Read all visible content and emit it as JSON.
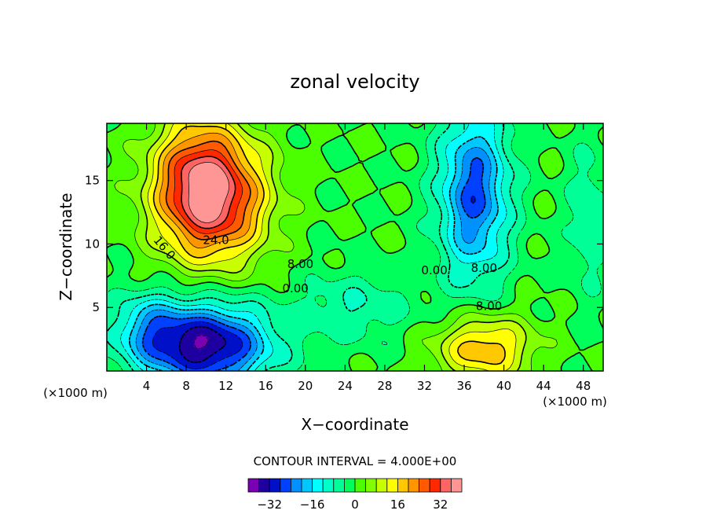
{
  "chart_data": {
    "type": "heatmap",
    "title": "zonal velocity",
    "xlabel": "X−coordinate",
    "ylabel": "Z−coordinate",
    "x_unit_label": "(×1000 m)",
    "z_unit_label": "(×1000 m)",
    "xlim": [
      0,
      50
    ],
    "ylim": [
      0,
      19.5
    ],
    "x_ticks": [
      "4",
      "8",
      "12",
      "16",
      "20",
      "24",
      "28",
      "32",
      "36",
      "40",
      "44",
      "48"
    ],
    "y_ticks": [
      "5",
      "10",
      "15"
    ],
    "contour_interval_text": "CONTOUR INTERVAL = 4.000E+00",
    "contour_labels": [
      "24.0",
      "16.0",
      "8.00",
      "0.00",
      "0.00",
      "8.00",
      "8.00"
    ],
    "colorbar": {
      "levels": [
        -36,
        -32,
        -28,
        -24,
        -20,
        -16,
        -12,
        -8,
        -4,
        0,
        4,
        8,
        12,
        16,
        20,
        24,
        28,
        32,
        36
      ],
      "tick_labels": [
        "−32",
        "−16",
        "0",
        "16",
        "32"
      ],
      "colors": [
        "#7a00b4",
        "#1e00a0",
        "#0010c8",
        "#0040ff",
        "#0090ff",
        "#00c8ff",
        "#00ffff",
        "#00ffc8",
        "#00ff96",
        "#00ff5a",
        "#4bff00",
        "#82ff00",
        "#c8ff00",
        "#ffff00",
        "#ffc800",
        "#ff9600",
        "#ff5a00",
        "#ff2800",
        "#ff6464",
        "#ff9696"
      ]
    },
    "features": [
      {
        "x": 10.5,
        "z": 13.5,
        "value": 36,
        "sx": 3.8,
        "sz": 3.4
      },
      {
        "x": 9,
        "z": 16.5,
        "value": 12,
        "sx": 3,
        "sz": 3
      },
      {
        "x": 10,
        "z": 2,
        "value": -36,
        "sx": 4.5,
        "sz": 2.3
      },
      {
        "x": 4,
        "z": 3.5,
        "value": -12,
        "sx": 2.5,
        "sz": 2
      },
      {
        "x": 37,
        "z": 14,
        "value": -26,
        "sx": 2.5,
        "sz": 4.8
      },
      {
        "x": 38,
        "z": 1.8,
        "value": 20,
        "sx": 3.3,
        "sz": 1.8
      },
      {
        "x": 25,
        "z": 5,
        "value": -8,
        "sx": 4,
        "sz": 2
      },
      {
        "x": 48.5,
        "z": 12,
        "value": -8,
        "sx": 1.5,
        "sz": 4
      }
    ]
  }
}
